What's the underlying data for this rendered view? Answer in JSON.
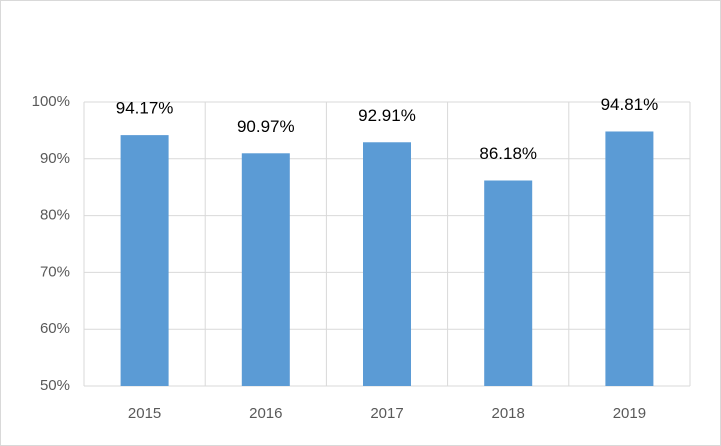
{
  "chart_data": {
    "type": "bar",
    "categories": [
      "2015",
      "2016",
      "2017",
      "2018",
      "2019"
    ],
    "values": [
      94.17,
      90.97,
      92.91,
      86.18,
      94.81
    ],
    "value_labels": [
      "94.17%",
      "90.97%",
      "92.91%",
      "86.18%",
      "94.81%"
    ],
    "color": "#5b9bd5",
    "ylim": [
      50,
      100
    ],
    "yticks": [
      {
        "value": 50,
        "label": "50%"
      },
      {
        "value": 60,
        "label": "60%"
      },
      {
        "value": 70,
        "label": "70%"
      },
      {
        "value": 80,
        "label": "80%"
      },
      {
        "value": 90,
        "label": "90%"
      },
      {
        "value": 100,
        "label": "100%"
      }
    ],
    "grid": true
  }
}
